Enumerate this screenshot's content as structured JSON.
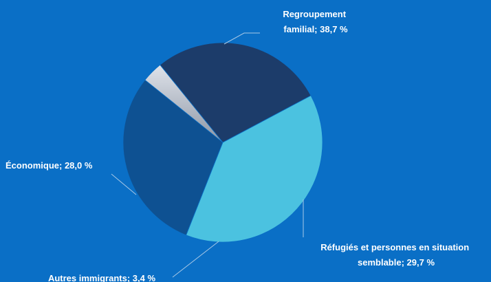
{
  "chart_data": {
    "type": "pie",
    "title": "",
    "slices": [
      {
        "name": "Regroupement familial",
        "value": 38.7,
        "color": "#4bc2e0",
        "label_lines": [
          "Regroupement",
          "familial; 38,7 %"
        ]
      },
      {
        "name": "Réfugiés et personnes en situation semblable",
        "value": 29.7,
        "color": "#0e5192",
        "label_lines": [
          "Réfugiés et personnes en situation",
          "semblable; 29,7 %"
        ]
      },
      {
        "name": "Autres immigrants",
        "value": 3.4,
        "color": "#b8bec8",
        "label_lines": [
          "Autres immigrants; 3,4 %"
        ]
      },
      {
        "name": "Économique",
        "value": 28.0,
        "color": "#1c3c6a",
        "label_lines": [
          "Économique; 28,0 %"
        ]
      }
    ],
    "legend": "none",
    "background": "#0a6fc6",
    "leader_line_color": "#a8c8e6"
  }
}
